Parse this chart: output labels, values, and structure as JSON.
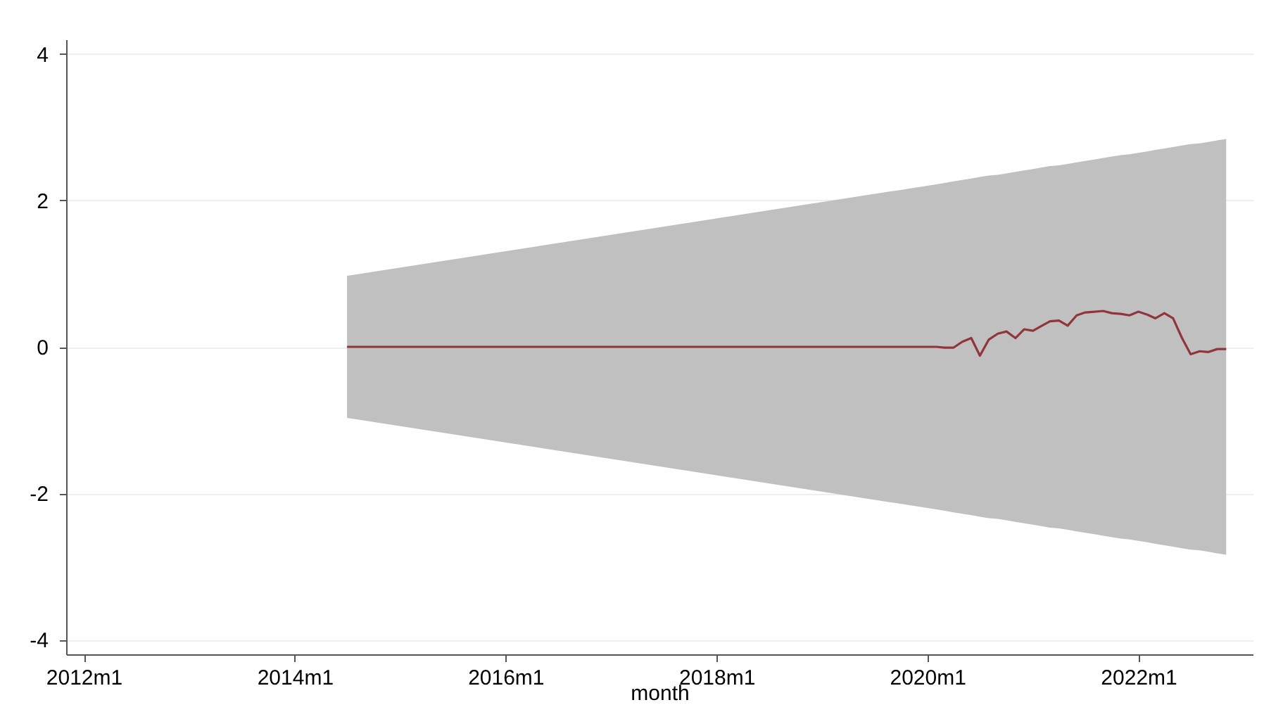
{
  "chart_data": {
    "type": "line",
    "xlabel": "month",
    "xlim": [
      "2011-11",
      "2023-02"
    ],
    "ylim": [
      -4.2,
      4.2
    ],
    "xticks": [
      {
        "value": "2012-01",
        "label": "2012m1"
      },
      {
        "value": "2014-01",
        "label": "2014m1"
      },
      {
        "value": "2016-01",
        "label": "2016m1"
      },
      {
        "value": "2018-01",
        "label": "2018m1"
      },
      {
        "value": "2020-01",
        "label": "2020m1"
      },
      {
        "value": "2022-01",
        "label": "2022m1"
      }
    ],
    "yticks": [
      -4,
      -2,
      0,
      2,
      4
    ],
    "grid": "y",
    "series": [
      {
        "color": "#90353b",
        "x": [
          "2014-07",
          "2020-02",
          "2020-03",
          "2020-04",
          "2020-05",
          "2020-06",
          "2020-07",
          "2020-08",
          "2020-09",
          "2020-10",
          "2020-11",
          "2020-12",
          "2021-01",
          "2021-02",
          "2021-03",
          "2021-04",
          "2021-05",
          "2021-06",
          "2021-07",
          "2021-08",
          "2021-09",
          "2021-10",
          "2021-11",
          "2021-12",
          "2022-01",
          "2022-02",
          "2022-03",
          "2022-04",
          "2022-05",
          "2022-06",
          "2022-07",
          "2022-08",
          "2022-09",
          "2022-10",
          "2022-11"
        ],
        "values": [
          0,
          0,
          -0.01,
          -0.01,
          0.07,
          0.12,
          -0.12,
          0.1,
          0.18,
          0.21,
          0.12,
          0.24,
          0.22,
          0.29,
          0.35,
          0.36,
          0.29,
          0.43,
          0.47,
          0.48,
          0.49,
          0.46,
          0.45,
          0.43,
          0.48,
          0.44,
          0.39,
          0.46,
          0.39,
          0.12,
          -0.1,
          -0.06,
          -0.07,
          -0.03,
          -0.03
        ],
        "upper": [
          0.97,
          2.22,
          2.24,
          2.26,
          2.28,
          2.3,
          2.32,
          2.34,
          2.35,
          2.37,
          2.39,
          2.41,
          2.43,
          2.45,
          2.47,
          2.48,
          2.5,
          2.52,
          2.54,
          2.56,
          2.58,
          2.6,
          2.62,
          2.63,
          2.65,
          2.67,
          2.69,
          2.71,
          2.73,
          2.75,
          2.77,
          2.78,
          2.8,
          2.82,
          2.84
        ],
        "lower": [
          -0.97,
          -2.22,
          -2.24,
          -2.26,
          -2.28,
          -2.3,
          -2.32,
          -2.34,
          -2.35,
          -2.37,
          -2.39,
          -2.41,
          -2.43,
          -2.45,
          -2.47,
          -2.48,
          -2.5,
          -2.52,
          -2.54,
          -2.56,
          -2.58,
          -2.6,
          -2.62,
          -2.63,
          -2.65,
          -2.67,
          -2.69,
          -2.71,
          -2.73,
          -2.75,
          -2.77,
          -2.78,
          -2.8,
          -2.82,
          -2.84
        ]
      }
    ]
  }
}
